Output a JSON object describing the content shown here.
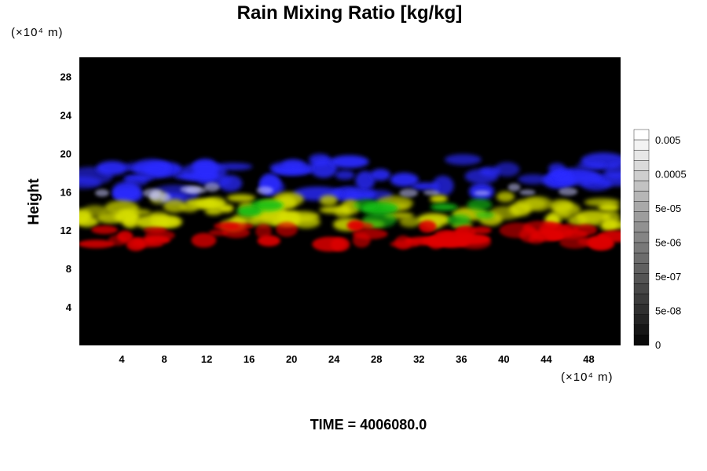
{
  "chart_data": {
    "type": "heatmap",
    "title": "Rain Mixing Ratio [kg/kg]",
    "ylabel": "Height",
    "y_unit": "(×10⁴ m)",
    "x_unit": "(×10⁴ m)",
    "x_ticks": [
      4,
      8,
      12,
      16,
      20,
      24,
      28,
      32,
      36,
      40,
      44,
      48
    ],
    "y_ticks": [
      4,
      8,
      12,
      16,
      20,
      24,
      28
    ],
    "xlim": [
      0,
      51
    ],
    "ylim": [
      0,
      30
    ],
    "colorbar": {
      "labels": [
        "0.005",
        "0.0005",
        "5e-05",
        "5e-06",
        "5e-07",
        "5e-08",
        "0"
      ],
      "levels": 21
    },
    "layers": [
      {
        "color": "#2a2aff",
        "y_range": [
          15.5,
          19.5
        ]
      },
      {
        "color": "#d8e000",
        "y_range": [
          12.5,
          15.5
        ]
      },
      {
        "color": "#18c018",
        "y_range": [
          13,
          15
        ]
      },
      {
        "color": "#e00000",
        "y_range": [
          10.5,
          12.5
        ]
      }
    ],
    "grid": false
  },
  "footer": {
    "time": "TIME = 4006080.0"
  }
}
